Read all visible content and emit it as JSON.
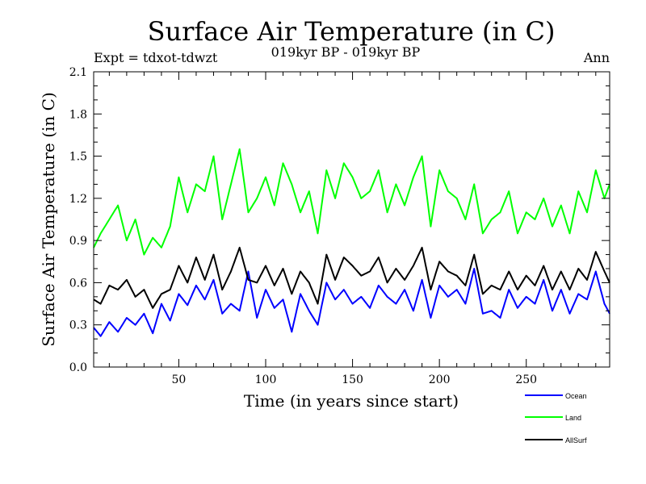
{
  "chart_data": {
    "type": "line",
    "title": "Surface Air Temperature (in C)",
    "subtitle": "019kyr BP - 019kyr BP",
    "left_note": "Expt = tdxot-tdwzt",
    "right_note": "Ann",
    "xlabel": "Time (in years since start)",
    "ylabel": "Surface Air Temperature (in C)",
    "xlim": [
      1,
      298
    ],
    "ylim": [
      0.0,
      2.1
    ],
    "xticks": [
      50,
      100,
      150,
      200,
      250
    ],
    "yticks": [
      "0.0",
      "0.3",
      "0.6",
      "0.9",
      "1.2",
      "1.5",
      "1.8",
      "2.1"
    ],
    "legend_position": "bottom-right, outside plot",
    "series": [
      {
        "name": "Ocean",
        "color": "#0000ff",
        "x": [
          1,
          5,
          10,
          15,
          20,
          25,
          30,
          35,
          40,
          45,
          50,
          55,
          60,
          65,
          70,
          75,
          80,
          85,
          90,
          95,
          100,
          105,
          110,
          115,
          120,
          125,
          130,
          135,
          140,
          145,
          150,
          155,
          160,
          165,
          170,
          175,
          180,
          185,
          190,
          195,
          200,
          205,
          210,
          215,
          220,
          225,
          230,
          235,
          240,
          245,
          250,
          255,
          260,
          265,
          270,
          275,
          280,
          285,
          290,
          295,
          298
        ],
        "values": [
          0.28,
          0.22,
          0.32,
          0.25,
          0.35,
          0.3,
          0.38,
          0.24,
          0.45,
          0.33,
          0.52,
          0.44,
          0.58,
          0.48,
          0.62,
          0.38,
          0.45,
          0.4,
          0.68,
          0.35,
          0.55,
          0.42,
          0.48,
          0.25,
          0.52,
          0.4,
          0.3,
          0.6,
          0.48,
          0.55,
          0.45,
          0.5,
          0.42,
          0.58,
          0.5,
          0.45,
          0.55,
          0.4,
          0.62,
          0.35,
          0.58,
          0.5,
          0.55,
          0.45,
          0.7,
          0.38,
          0.4,
          0.35,
          0.55,
          0.42,
          0.5,
          0.45,
          0.62,
          0.4,
          0.55,
          0.38,
          0.52,
          0.48,
          0.68,
          0.45,
          0.38
        ]
      },
      {
        "name": "Land",
        "color": "#00ff00",
        "x": [
          1,
          5,
          10,
          15,
          20,
          25,
          30,
          35,
          40,
          45,
          50,
          55,
          60,
          65,
          70,
          75,
          80,
          85,
          90,
          95,
          100,
          105,
          110,
          115,
          120,
          125,
          130,
          135,
          140,
          145,
          150,
          155,
          160,
          165,
          170,
          175,
          180,
          185,
          190,
          195,
          200,
          205,
          210,
          215,
          220,
          225,
          230,
          235,
          240,
          245,
          250,
          255,
          260,
          265,
          270,
          275,
          280,
          285,
          290,
          295,
          298
        ],
        "values": [
          0.85,
          0.95,
          1.05,
          1.15,
          0.9,
          1.05,
          0.8,
          0.92,
          0.85,
          1.0,
          1.35,
          1.1,
          1.3,
          1.25,
          1.5,
          1.05,
          1.3,
          1.55,
          1.1,
          1.2,
          1.35,
          1.15,
          1.45,
          1.3,
          1.1,
          1.25,
          0.95,
          1.4,
          1.2,
          1.45,
          1.35,
          1.2,
          1.25,
          1.4,
          1.1,
          1.3,
          1.15,
          1.35,
          1.5,
          1.0,
          1.4,
          1.25,
          1.2,
          1.05,
          1.3,
          0.95,
          1.05,
          1.1,
          1.25,
          0.95,
          1.1,
          1.05,
          1.2,
          1.0,
          1.15,
          0.95,
          1.25,
          1.1,
          1.4,
          1.2,
          1.3
        ]
      },
      {
        "name": "AllSurf",
        "color": "#000000",
        "x": [
          1,
          5,
          10,
          15,
          20,
          25,
          30,
          35,
          40,
          45,
          50,
          55,
          60,
          65,
          70,
          75,
          80,
          85,
          90,
          95,
          100,
          105,
          110,
          115,
          120,
          125,
          130,
          135,
          140,
          145,
          150,
          155,
          160,
          165,
          170,
          175,
          180,
          185,
          190,
          195,
          200,
          205,
          210,
          215,
          220,
          225,
          230,
          235,
          240,
          245,
          250,
          255,
          260,
          265,
          270,
          275,
          280,
          285,
          290,
          295,
          298
        ],
        "values": [
          0.48,
          0.45,
          0.58,
          0.55,
          0.62,
          0.5,
          0.55,
          0.42,
          0.52,
          0.55,
          0.72,
          0.6,
          0.78,
          0.62,
          0.8,
          0.55,
          0.68,
          0.85,
          0.62,
          0.6,
          0.72,
          0.58,
          0.7,
          0.52,
          0.68,
          0.6,
          0.45,
          0.8,
          0.62,
          0.78,
          0.72,
          0.65,
          0.68,
          0.78,
          0.6,
          0.7,
          0.62,
          0.72,
          0.85,
          0.55,
          0.75,
          0.68,
          0.65,
          0.58,
          0.8,
          0.52,
          0.58,
          0.55,
          0.68,
          0.55,
          0.65,
          0.58,
          0.72,
          0.55,
          0.68,
          0.55,
          0.7,
          0.62,
          0.82,
          0.68,
          0.6
        ]
      }
    ]
  }
}
